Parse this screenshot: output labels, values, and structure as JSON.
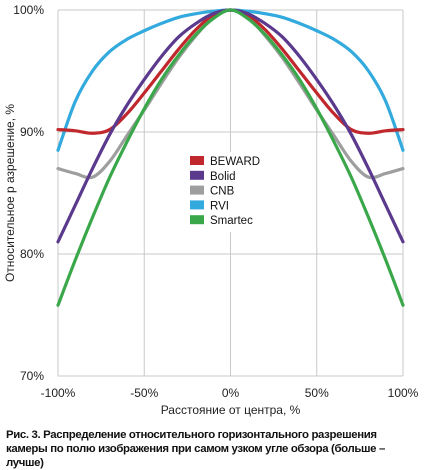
{
  "chart_data": {
    "type": "line",
    "title": "",
    "xlabel": "Расстояние от центра, %",
    "ylabel": "Относительное р азрешение, %",
    "xlim": [
      -100,
      100
    ],
    "ylim": [
      70,
      100
    ],
    "x_ticks": [
      "-100%",
      "-50%",
      "0%",
      "50%",
      "100%"
    ],
    "y_ticks": [
      "70%",
      "80%",
      "90%",
      "100%"
    ],
    "grid": true,
    "legend_position": "center",
    "x": [
      -100,
      -90,
      -80,
      -70,
      -60,
      -50,
      -40,
      -30,
      -20,
      -10,
      0,
      10,
      20,
      30,
      40,
      50,
      60,
      70,
      80,
      90,
      100
    ],
    "series": [
      {
        "name": "BEWARD",
        "color": "#c0282d",
        "values": [
          90.2,
          90.1,
          89.9,
          90.2,
          91.5,
          93.2,
          95.0,
          96.8,
          98.4,
          99.6,
          100,
          99.6,
          98.4,
          96.8,
          95.0,
          93.2,
          91.5,
          90.2,
          89.9,
          90.1,
          90.2
        ]
      },
      {
        "name": "Bolid",
        "color": "#5b3a8e",
        "values": [
          81.0,
          84.0,
          87.0,
          89.8,
          92.2,
          94.3,
          96.2,
          97.8,
          98.9,
          99.7,
          100,
          99.7,
          98.9,
          97.8,
          96.2,
          94.3,
          92.2,
          89.8,
          87.0,
          84.0,
          81.0
        ]
      },
      {
        "name": "CNB",
        "color": "#9e9e9e",
        "values": [
          87.0,
          86.6,
          86.3,
          87.6,
          89.7,
          91.8,
          94.0,
          96.1,
          97.9,
          99.4,
          100,
          99.4,
          97.9,
          96.1,
          94.0,
          91.8,
          89.7,
          87.6,
          86.3,
          86.6,
          87.0
        ]
      },
      {
        "name": "RVI",
        "color": "#33aadd",
        "values": [
          88.5,
          92.5,
          95.0,
          96.6,
          97.6,
          98.3,
          98.9,
          99.4,
          99.7,
          99.9,
          100,
          99.9,
          99.7,
          99.4,
          98.9,
          98.3,
          97.6,
          96.6,
          95.0,
          92.5,
          88.5
        ]
      },
      {
        "name": "Smartec",
        "color": "#3aa84a",
        "values": [
          75.8,
          79.5,
          83.0,
          86.3,
          89.2,
          91.9,
          94.3,
          96.3,
          98.0,
          99.3,
          100,
          99.3,
          98.0,
          96.3,
          94.3,
          91.9,
          89.2,
          86.3,
          83.0,
          79.5,
          75.8
        ]
      }
    ]
  },
  "caption": "Рис. 3. Распределение относительного горизонтального разрешения камеры по полю изображения при самом узком угле обзора (больше – лучше)"
}
